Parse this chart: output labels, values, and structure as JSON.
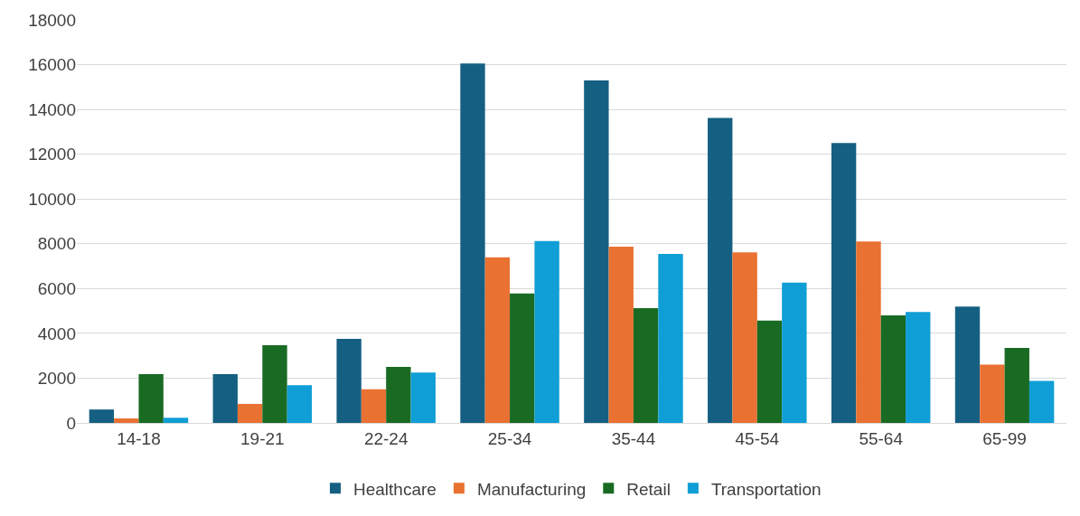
{
  "chart_data": {
    "type": "bar",
    "categories": [
      "14-18",
      "19-21",
      "22-24",
      "25-34",
      "35-44",
      "45-54",
      "55-64",
      "65-99"
    ],
    "series": [
      {
        "name": "Healthcare",
        "color": "#156082",
        "values": [
          600,
          2180,
          3750,
          16050,
          15300,
          13620,
          12500,
          5200
        ]
      },
      {
        "name": "Manufacturing",
        "color": "#e97132",
        "values": [
          200,
          850,
          1500,
          7400,
          7870,
          7620,
          8100,
          2600
        ]
      },
      {
        "name": "Retail",
        "color": "#196b24",
        "values": [
          2180,
          3470,
          2500,
          5780,
          5130,
          4570,
          4800,
          3350
        ]
      },
      {
        "name": "Transportation",
        "color": "#0f9ed5",
        "values": [
          230,
          1680,
          2250,
          8120,
          7550,
          6270,
          4950,
          1880
        ]
      }
    ],
    "ylim": [
      0,
      18000
    ],
    "yticks": [
      0,
      2000,
      4000,
      6000,
      8000,
      10000,
      12000,
      14000,
      16000,
      18000
    ],
    "grid": "y",
    "legend": "bottom"
  }
}
